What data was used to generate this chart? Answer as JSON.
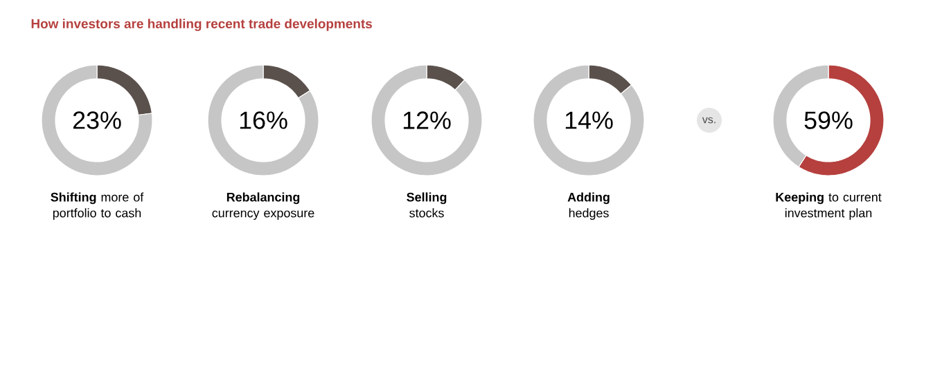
{
  "chart_data": [
    {
      "type": "donut",
      "title": "How investors are handling recent trade developments",
      "xlabel": "**Shifting** more of portfolio to cash",
      "categories": [
        null,
        null
      ],
      "values": [
        23,
        77
      ],
      "colors": [
        "#5b514c",
        "#c6c6c6"
      ],
      "annotations": [
        "23%"
      ]
    },
    {
      "type": "donut",
      "xlabel": "**Rebalancing** currency exposure",
      "categories": [
        null,
        null
      ],
      "values": [
        16,
        84
      ],
      "colors": [
        "#5b514c",
        "#c6c6c6"
      ],
      "annotations": [
        "16%"
      ]
    },
    {
      "type": "donut",
      "xlabel": "**Selling** stocks",
      "categories": [
        null,
        null
      ],
      "values": [
        12,
        88
      ],
      "colors": [
        "#5b514c",
        "#c6c6c6"
      ],
      "annotations": [
        "12%"
      ]
    },
    {
      "type": "donut",
      "xlabel": "**Adding** hedges",
      "categories": [
        null,
        null
      ],
      "values": [
        14,
        86
      ],
      "colors": [
        "#5b514c",
        "#c6c6c6"
      ],
      "annotations": [
        "14%"
      ]
    },
    {
      "type": "donut",
      "xlabel": "**Keeping** to current investment plan",
      "categories": [
        null,
        null
      ],
      "values": [
        59,
        41
      ],
      "colors": [
        "#b5403e",
        "#c6c6c6"
      ],
      "annotations": [
        "59%",
        "vs."
      ]
    }
  ]
}
